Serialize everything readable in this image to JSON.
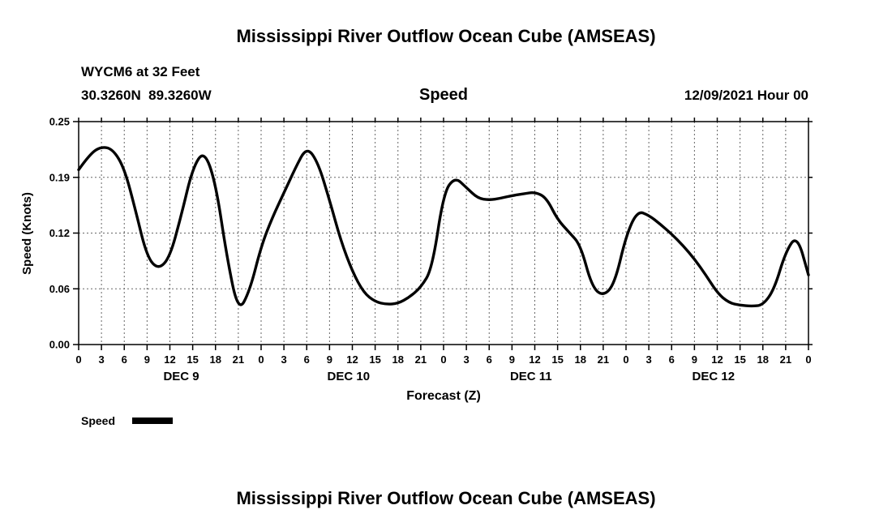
{
  "page": {
    "top_title": "Mississippi River Outflow Ocean Cube (AMSEAS)",
    "bottom_title": "Mississippi River Outflow Ocean Cube (AMSEAS)"
  },
  "header": {
    "station_line1": "WYCM6 at 32 Feet",
    "station_line2": "30.3260N  89.3260W",
    "plot_label": "Speed",
    "run_label": "12/09/2021 Hour 00"
  },
  "legend": {
    "label": "Speed",
    "swatch_color": "#000000"
  },
  "chart_data": {
    "type": "line",
    "title": "Speed",
    "xlabel": "Forecast (Z)",
    "ylabel": "Speed (Knots)",
    "ylim": [
      0,
      0.25
    ],
    "grid": "dashed",
    "legend_position": "bottom-left",
    "line_color": "#000000",
    "ytick_values": [
      0,
      0.0625,
      0.125,
      0.1875,
      0.25
    ],
    "ytick_labels": [
      "0.00",
      "0.06",
      "0.12",
      "0.19",
      "0.25"
    ],
    "x_hours_range": [
      0,
      96
    ],
    "xtick_hours": [
      0,
      3,
      6,
      9,
      12,
      15,
      18,
      21,
      24,
      27,
      30,
      33,
      36,
      39,
      42,
      45,
      48,
      51,
      54,
      57,
      60,
      63,
      66,
      69,
      72,
      75,
      78,
      81,
      84,
      87,
      90,
      93,
      96
    ],
    "xtick_labels": [
      "0",
      "3",
      "6",
      "9",
      "12",
      "15",
      "18",
      "21",
      "0",
      "3",
      "6",
      "9",
      "12",
      "15",
      "18",
      "21",
      "0",
      "3",
      "6",
      "9",
      "12",
      "15",
      "18",
      "21",
      "0",
      "3",
      "6",
      "9",
      "12",
      "15",
      "18",
      "21",
      "0"
    ],
    "day_labels": [
      {
        "label": "DEC 9",
        "center_hour": 13.5
      },
      {
        "label": "DEC 10",
        "center_hour": 35.5
      },
      {
        "label": "DEC 11",
        "center_hour": 59.5
      },
      {
        "label": "DEC 12",
        "center_hour": 83.5
      }
    ],
    "series": [
      {
        "name": "Speed",
        "color": "#000000",
        "x": [
          0,
          1.5,
          3,
          4.5,
          6,
          7.5,
          9,
          10.5,
          12,
          13.5,
          15,
          16.5,
          18,
          19.5,
          21,
          22.5,
          24,
          25.5,
          27,
          28.5,
          30,
          31.5,
          33,
          34.5,
          36,
          37.5,
          39,
          40.5,
          42,
          43.5,
          45,
          46.5,
          48,
          49.5,
          51,
          52.5,
          54,
          55.5,
          57,
          58.5,
          60,
          61.5,
          63,
          64.5,
          66,
          67.5,
          69,
          70.5,
          72,
          73.5,
          75,
          76.5,
          78,
          79.5,
          81,
          82.5,
          84,
          85.5,
          87,
          88.5,
          90,
          91.5,
          93,
          94.5,
          96
        ],
        "values": [
          0.196,
          0.214,
          0.222,
          0.219,
          0.198,
          0.15,
          0.098,
          0.084,
          0.098,
          0.145,
          0.198,
          0.218,
          0.182,
          0.098,
          0.036,
          0.06,
          0.11,
          0.143,
          0.17,
          0.198,
          0.222,
          0.204,
          0.162,
          0.116,
          0.082,
          0.058,
          0.048,
          0.045,
          0.046,
          0.053,
          0.064,
          0.085,
          0.17,
          0.188,
          0.176,
          0.164,
          0.162,
          0.164,
          0.167,
          0.169,
          0.171,
          0.165,
          0.14,
          0.126,
          0.112,
          0.065,
          0.054,
          0.068,
          0.122,
          0.15,
          0.145,
          0.135,
          0.124,
          0.111,
          0.096,
          0.078,
          0.058,
          0.047,
          0.044,
          0.043,
          0.044,
          0.062,
          0.104,
          0.123,
          0.078
        ]
      }
    ]
  }
}
